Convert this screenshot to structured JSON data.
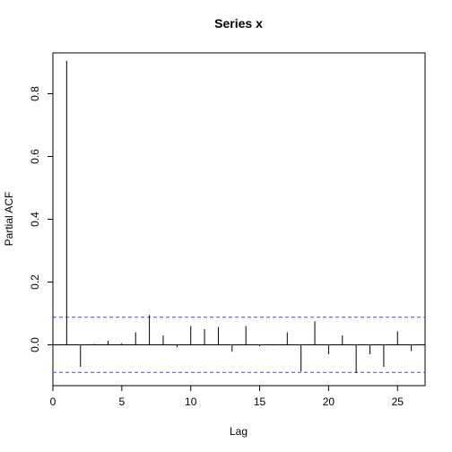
{
  "chart_data": {
    "type": "bar",
    "title": "Series  x",
    "xlabel": "Lag",
    "ylabel": "Partial ACF",
    "xlim": [
      0,
      27
    ],
    "ylim": [
      -0.13,
      0.93
    ],
    "x_ticks": [
      0,
      5,
      10,
      15,
      20,
      25
    ],
    "x_tick_labels": [
      "0",
      "5",
      "10",
      "15",
      "20",
      "25"
    ],
    "y_ticks": [
      0.0,
      0.2,
      0.4,
      0.6,
      0.8
    ],
    "y_tick_labels": [
      "0.0",
      "0.2",
      "0.4",
      "0.6",
      "0.8"
    ],
    "zero_line": 0,
    "confidence_bound": 0.088,
    "confidence_line_color": "#5a5aff",
    "series": [
      {
        "x": [
          1,
          2,
          3,
          4,
          5,
          6,
          7,
          8,
          9,
          10,
          11,
          12,
          13,
          14,
          15,
          16,
          17,
          18,
          19,
          20,
          21,
          22,
          23,
          24,
          25,
          26
        ],
        "values": [
          0.905,
          -0.07,
          0.003,
          0.013,
          0.005,
          0.04,
          0.095,
          0.03,
          -0.008,
          0.06,
          0.05,
          0.057,
          -0.022,
          0.06,
          -0.005,
          -0.002,
          0.04,
          -0.085,
          0.075,
          -0.03,
          0.03,
          -0.09,
          -0.03,
          -0.07,
          0.043,
          -0.02
        ]
      }
    ]
  }
}
